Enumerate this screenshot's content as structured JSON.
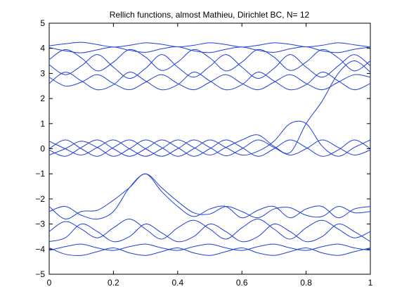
{
  "chart_data": {
    "type": "line",
    "title": "Rellich functions, almost Mathieu, Dirichlet BC,  N= 12",
    "xlabel": "",
    "ylabel": "",
    "xlim": [
      0,
      1
    ],
    "ylim": [
      -5,
      5
    ],
    "xticks": [
      0,
      0.2,
      0.4,
      0.6,
      0.8,
      1
    ],
    "xtick_labels": [
      "0",
      "0.2",
      "0.4",
      "0.6",
      "0.8",
      "1"
    ],
    "yticks": [
      -5,
      -4,
      -3,
      -2,
      -1,
      0,
      1,
      2,
      3,
      4,
      5
    ],
    "ytick_labels": [
      "−5",
      "−4",
      "−3",
      "−2",
      "−1",
      "0",
      "1",
      "2",
      "3",
      "4",
      "5"
    ],
    "grid": false,
    "legend": "none",
    "line_color": "#1f3fd8",
    "x": [
      0,
      0.05,
      0.1,
      0.15,
      0.2,
      0.25,
      0.3,
      0.35,
      0.4,
      0.45,
      0.5,
      0.55,
      0.6,
      0.65,
      0.7,
      0.75,
      0.8,
      0.85,
      0.9,
      0.95,
      1
    ],
    "series": [
      {
        "values": [
          4.1,
          4.18,
          4.24,
          4.15,
          4.05,
          4.12,
          4.22,
          4.16,
          4.06,
          4.12,
          4.22,
          4.15,
          4.05,
          4.12,
          4.22,
          4.16,
          4.06,
          4.12,
          4.22,
          4.14,
          4.05
        ]
      },
      {
        "values": [
          4.03,
          3.9,
          3.82,
          3.94,
          4.05,
          3.92,
          3.84,
          3.98,
          4.06,
          3.9,
          3.83,
          3.96,
          4.05,
          3.92,
          3.84,
          3.98,
          4.06,
          3.9,
          3.83,
          3.96,
          4.05
        ]
      },
      {
        "values": [
          3.55,
          3.95,
          3.62,
          3.1,
          3.45,
          3.95,
          3.65,
          3.12,
          3.45,
          3.95,
          3.62,
          3.1,
          3.45,
          3.95,
          3.65,
          3.12,
          3.45,
          3.95,
          3.62,
          3.1,
          3.5
        ]
      },
      {
        "values": [
          3.35,
          2.95,
          3.3,
          3.75,
          3.25,
          2.8,
          3.2,
          3.75,
          3.25,
          2.85,
          3.28,
          3.75,
          3.25,
          2.8,
          3.2,
          3.75,
          3.25,
          2.85,
          3.3,
          3.75,
          3.3
        ]
      },
      {
        "values": [
          2.6,
          3.05,
          2.7,
          2.35,
          2.55,
          3.05,
          2.7,
          2.35,
          2.55,
          3.05,
          2.7,
          2.35,
          2.55,
          3.05,
          2.7,
          2.35,
          2.55,
          3.05,
          2.7,
          2.35,
          2.6
        ]
      },
      {
        "values": [
          2.85,
          2.5,
          2.65,
          2.95,
          2.6,
          2.35,
          2.65,
          2.95,
          2.6,
          2.35,
          2.65,
          2.95,
          2.6,
          2.35,
          2.65,
          2.95,
          2.6,
          2.35,
          2.65,
          2.95,
          2.85
        ]
      },
      {
        "values": [
          0.0,
          0.35,
          0.0,
          -0.3,
          0.05,
          0.35,
          0.0,
          -0.3,
          0.0,
          0.35,
          0.05,
          -0.28,
          0.0,
          0.35,
          0.05,
          -0.25,
          0.0,
          0.35,
          0.05,
          -0.25,
          -0.05
        ]
      },
      {
        "values": [
          -0.05,
          -0.3,
          0.05,
          0.35,
          0.0,
          -0.3,
          0.0,
          0.35,
          0.05,
          -0.3,
          0.0,
          0.35,
          0.05,
          -0.3,
          0.0,
          0.35,
          0.05,
          -0.3,
          -0.05,
          0.35,
          0.0
        ]
      },
      {
        "values": [
          -2.3,
          -2.8,
          -2.5,
          -2.45,
          -2.05,
          -1.55,
          -1.0,
          -1.7,
          -2.3,
          -2.7,
          -2.4,
          -2.3,
          -2.75,
          -2.45,
          -2.3,
          -2.75,
          -2.4,
          -2.3,
          -2.75,
          -2.4,
          -2.3
        ]
      },
      {
        "values": [
          -2.5,
          -2.3,
          -2.65,
          -2.8,
          -2.5,
          -1.55,
          -1.0,
          -1.55,
          -2.1,
          -2.55,
          -2.6,
          -2.3,
          -2.5,
          -2.75,
          -2.4,
          -2.35,
          -2.65,
          -2.7,
          -2.3,
          -2.55,
          -2.5
        ]
      },
      {
        "values": [
          -3.3,
          -2.9,
          -3.2,
          -3.55,
          -3.15,
          -2.8,
          -3.2,
          -3.6,
          -3.15,
          -2.85,
          -3.2,
          -3.6,
          -3.15,
          -2.8,
          -3.2,
          -3.6,
          -3.15,
          -2.85,
          -3.2,
          -3.55,
          -3.3
        ]
      },
      {
        "values": [
          -3.7,
          -3.55,
          -3.0,
          -3.3,
          -3.7,
          -3.5,
          -3.0,
          -3.35,
          -3.7,
          -3.5,
          -3.0,
          -3.3,
          -3.7,
          -3.5,
          -3.0,
          -3.3,
          -3.7,
          -3.5,
          -3.0,
          -3.3,
          -3.7
        ]
      },
      {
        "values": [
          -4.05,
          -3.9,
          -3.8,
          -3.95,
          -4.05,
          -3.9,
          -3.8,
          -3.95,
          -4.05,
          -3.9,
          -3.8,
          -3.95,
          -4.05,
          -3.9,
          -3.8,
          -3.95,
          -4.05,
          -3.9,
          -3.8,
          -3.95,
          -4.05
        ]
      },
      {
        "values": [
          -3.95,
          -4.2,
          -4.25,
          -4.1,
          -3.95,
          -4.15,
          -4.25,
          -4.1,
          -3.95,
          -4.15,
          -4.25,
          -4.1,
          -3.95,
          -4.15,
          -4.25,
          -4.1,
          -3.95,
          -4.15,
          -4.25,
          -4.1,
          -3.95
        ]
      },
      {
        "values": [
          0.3,
          0.0,
          -0.25,
          0.05,
          0.35,
          0.0,
          -0.3,
          0.0,
          0.35,
          0.05,
          -0.25,
          0.05,
          0.35,
          0.55,
          0.1,
          -0.15,
          1.0,
          1.9,
          3.0,
          3.5,
          3.05
        ]
      },
      {
        "values": [
          -0.25,
          0.0,
          0.3,
          0.05,
          -0.3,
          0.0,
          0.35,
          0.05,
          -0.3,
          0.0,
          0.35,
          0.05,
          -0.25,
          -0.1,
          0.3,
          1.0,
          1.0,
          0.1,
          -0.3,
          0.05,
          0.35
        ]
      }
    ]
  }
}
